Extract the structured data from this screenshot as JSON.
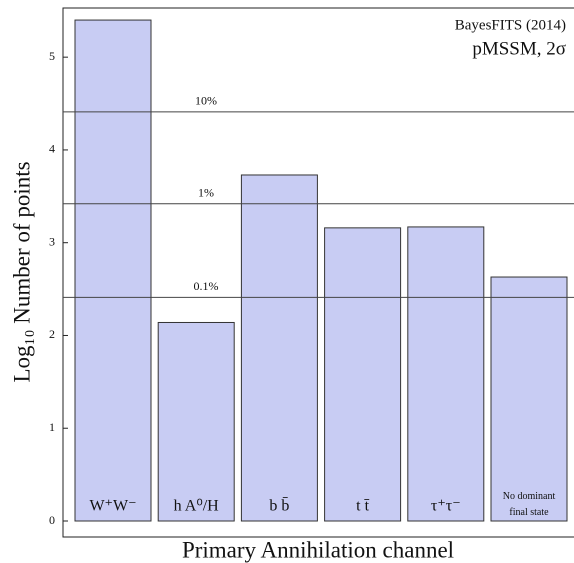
{
  "chart_data": {
    "type": "bar",
    "title": "BayesFITS (2014)",
    "subtitle": "pMSSM, 2σ",
    "y_label": "Log₁₀ Number of points",
    "x_label": "Primary Annihilation channel",
    "categories": [
      "W⁺W⁻",
      "h A⁰/H",
      "b b̄",
      "t t̄",
      "τ⁺τ⁻",
      "No dominant final state"
    ],
    "values": [
      5.4,
      2.14,
      3.73,
      3.16,
      3.17,
      2.63
    ],
    "color": "#c8ccf3",
    "ylim": [
      0,
      5.53
    ],
    "yticks": [
      0,
      1,
      2,
      3,
      4,
      5
    ],
    "reference_lines": [
      {
        "value": 4.41,
        "label": "10%"
      },
      {
        "value": 3.42,
        "label": "1%"
      },
      {
        "value": 2.41,
        "label": "0.1%"
      }
    ]
  }
}
